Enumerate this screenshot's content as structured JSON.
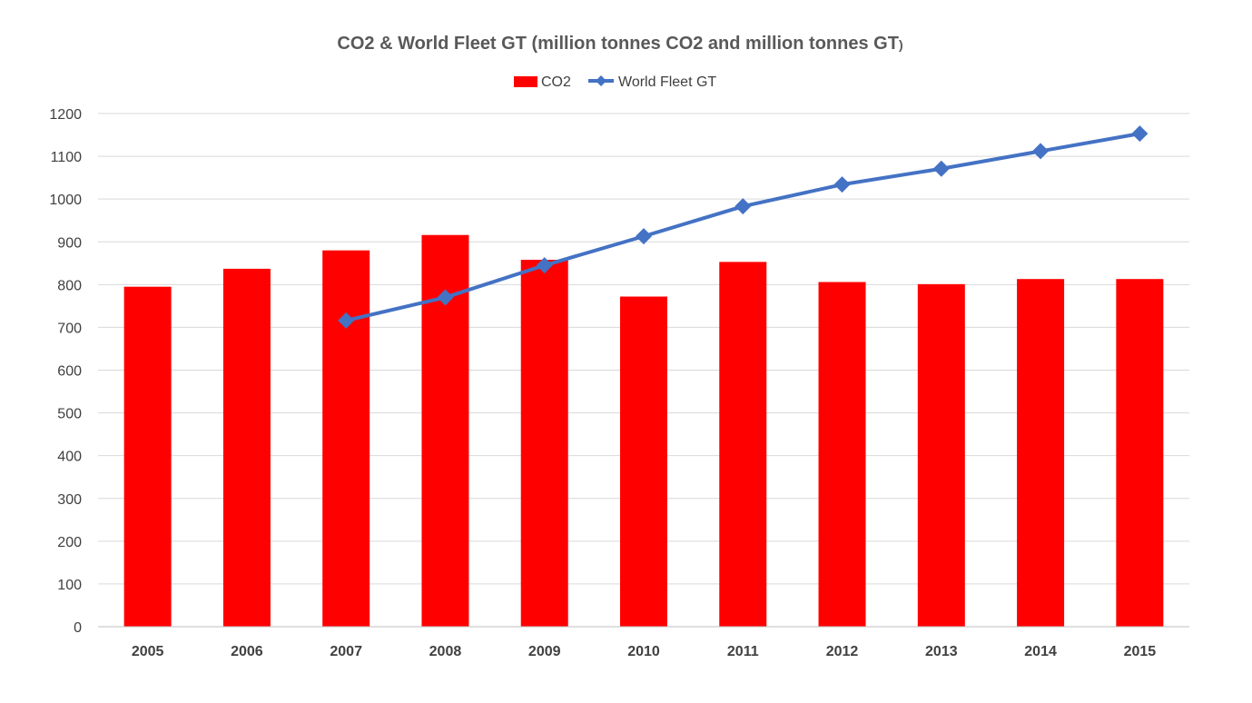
{
  "chart_data": {
    "type": "bar",
    "title": "CO2 & World Fleet GT (million tonnes CO2 and million tonnes GT",
    "title_suffix": ")",
    "xlabel": "",
    "ylabel": "",
    "ylim": [
      0,
      1200
    ],
    "yticks": [
      0,
      100,
      200,
      300,
      400,
      500,
      600,
      700,
      800,
      900,
      1000,
      1100,
      1200
    ],
    "grid": true,
    "legend_position": "top-center",
    "categories": [
      "2005",
      "2006",
      "2007",
      "2008",
      "2009",
      "2010",
      "2011",
      "2012",
      "2013",
      "2014",
      "2015"
    ],
    "series": [
      {
        "name": "CO2",
        "type": "bar",
        "color": "#ff0000",
        "values": [
          795,
          837,
          880,
          916,
          858,
          772,
          853,
          806,
          801,
          813,
          813
        ]
      },
      {
        "name": "World Fleet GT",
        "type": "line",
        "marker": "diamond",
        "color": "#4472c4",
        "values": [
          null,
          null,
          716,
          770,
          845,
          913,
          983,
          1034,
          1071,
          1112,
          1153
        ]
      }
    ]
  }
}
